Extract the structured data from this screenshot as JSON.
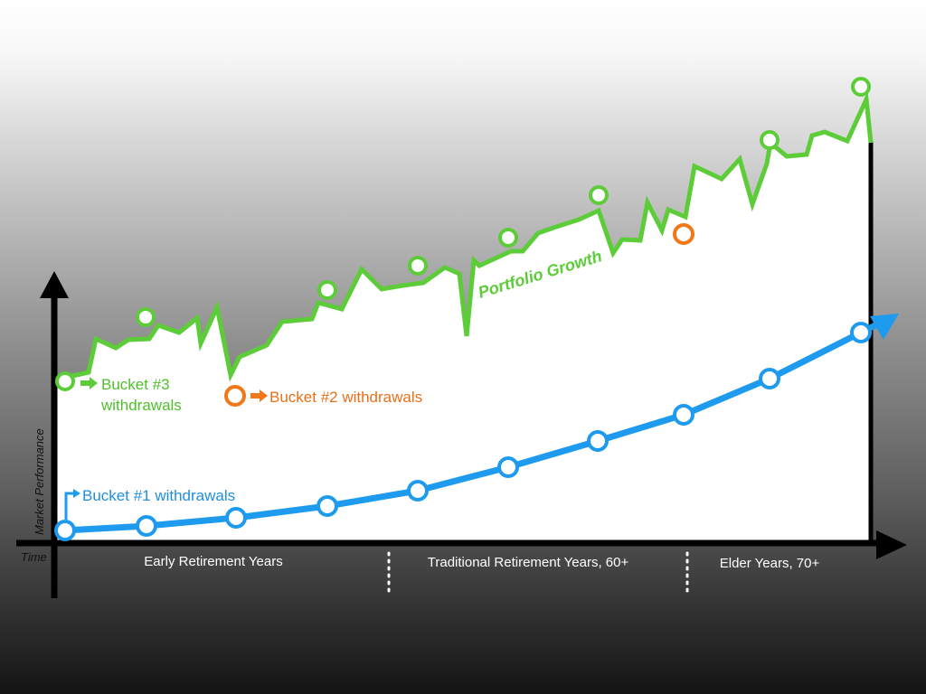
{
  "axes": {
    "y_label": "Market Performance",
    "x_label": "Time"
  },
  "periods": [
    {
      "label": "Early Retirement Years"
    },
    {
      "label": "Traditional Retirement Years, 60+"
    },
    {
      "label": "Elder Years, 70+"
    }
  ],
  "annotations": {
    "portfolio_growth": "Portfolio Growth",
    "bucket3": [
      "Bucket #3",
      "withdrawals"
    ],
    "bucket2": "Bucket #2 withdrawals",
    "bucket1": "Bucket #1 withdrawals"
  },
  "colors": {
    "green": "#5ccc38",
    "orange": "#f07818",
    "blue": "#1e9bef",
    "axis": "#000000",
    "bucket3_text": "#4fc02b",
    "bucket2_text": "#e8701a",
    "bucket1_text": "#1f8ee0"
  }
}
